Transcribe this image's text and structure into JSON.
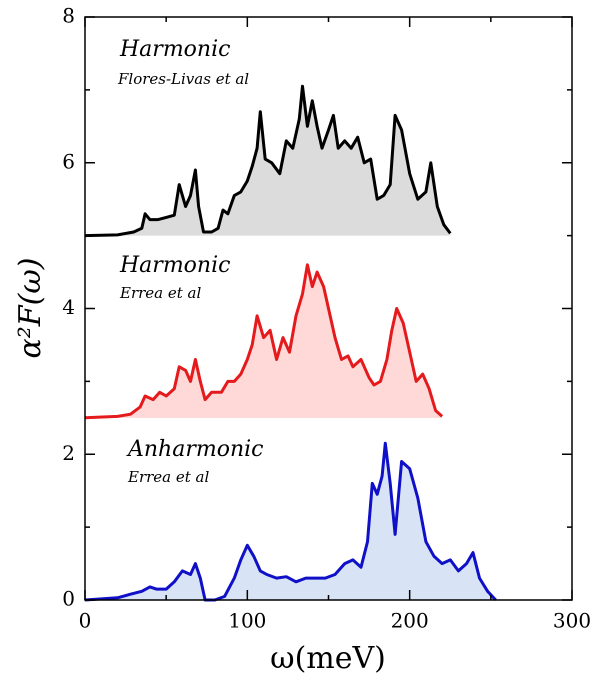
{
  "chart_data": {
    "type": "area",
    "xlabel": "ω(meV)",
    "ylabel": "α²F(ω)",
    "xlim": [
      0,
      300
    ],
    "ylim": [
      0,
      8
    ],
    "xticks": [
      0,
      100,
      200,
      300
    ],
    "yticks": [
      0,
      2,
      4,
      6,
      8
    ],
    "xminorticks": [
      50,
      150,
      250
    ],
    "yminorticks": [
      1,
      3,
      5,
      7
    ],
    "mirror_ticks": true,
    "annotations": [
      "Harmonic",
      "Flores-Livas et al",
      "Harmonic",
      "Errea et al",
      "Anharmonic",
      "Errea et al"
    ],
    "series": [
      {
        "color": "#000000",
        "fill": "#dcdcdc",
        "x": [
          0,
          20,
          30,
          35,
          37,
          40,
          45,
          50,
          55,
          58,
          62,
          65,
          68,
          70,
          73,
          78,
          82,
          85,
          88,
          92,
          96,
          100,
          103,
          106,
          108,
          111,
          115,
          120,
          124,
          128,
          132,
          134,
          137,
          140,
          143,
          146,
          150,
          153,
          156,
          160,
          164,
          168,
          172,
          176,
          180,
          184,
          188,
          191,
          195,
          200,
          205,
          210,
          213,
          217,
          221,
          225
        ],
        "values": [
          5.0,
          5.01,
          5.05,
          5.1,
          5.3,
          5.22,
          5.22,
          5.25,
          5.28,
          5.7,
          5.4,
          5.55,
          5.9,
          5.4,
          5.05,
          5.05,
          5.1,
          5.35,
          5.3,
          5.55,
          5.6,
          5.75,
          5.95,
          6.2,
          6.7,
          6.05,
          6.0,
          5.85,
          6.3,
          6.2,
          6.6,
          7.05,
          6.5,
          6.85,
          6.5,
          6.2,
          6.45,
          6.65,
          6.2,
          6.3,
          6.2,
          6.35,
          6.0,
          6.05,
          5.5,
          5.55,
          5.7,
          6.65,
          6.45,
          5.85,
          5.5,
          5.6,
          6.0,
          5.4,
          5.15,
          5.03
        ]
      },
      {
        "color": "#e41a1c",
        "fill": "#ffd8d8",
        "x": [
          0,
          20,
          28,
          34,
          37,
          42,
          46,
          50,
          55,
          58,
          62,
          65,
          68,
          71,
          74,
          78,
          84,
          88,
          92,
          96,
          100,
          103,
          106,
          110,
          114,
          118,
          122,
          126,
          130,
          134,
          137,
          140,
          143,
          147,
          150,
          154,
          158,
          162,
          165,
          170,
          175,
          178,
          182,
          186,
          189,
          192,
          196,
          200,
          204,
          208,
          212,
          216,
          220
        ],
        "values": [
          2.5,
          2.52,
          2.55,
          2.65,
          2.8,
          2.75,
          2.85,
          2.8,
          2.9,
          3.2,
          3.15,
          3.0,
          3.3,
          3.0,
          2.75,
          2.85,
          2.85,
          3.0,
          3.0,
          3.1,
          3.3,
          3.5,
          3.9,
          3.6,
          3.7,
          3.3,
          3.6,
          3.4,
          3.9,
          4.2,
          4.6,
          4.3,
          4.5,
          4.3,
          4.0,
          3.6,
          3.3,
          3.35,
          3.2,
          3.3,
          3.05,
          2.95,
          3.0,
          3.3,
          3.7,
          4.0,
          3.8,
          3.4,
          3.0,
          3.1,
          2.9,
          2.6,
          2.52
        ]
      },
      {
        "color": "#1010c8",
        "fill": "#d8e4f6",
        "x": [
          0,
          20,
          28,
          35,
          40,
          44,
          50,
          55,
          60,
          65,
          68,
          71,
          74,
          80,
          86,
          92,
          96,
          100,
          104,
          108,
          112,
          118,
          124,
          130,
          136,
          142,
          148,
          154,
          160,
          165,
          170,
          174,
          177,
          180,
          183,
          185,
          188,
          191,
          195,
          200,
          205,
          210,
          215,
          220,
          225,
          230,
          235,
          239,
          243,
          248,
          253
        ],
        "values": [
          0,
          0.03,
          0.08,
          0.12,
          0.18,
          0.15,
          0.15,
          0.25,
          0.4,
          0.35,
          0.5,
          0.3,
          0.0,
          0.0,
          0.05,
          0.3,
          0.55,
          0.75,
          0.6,
          0.4,
          0.35,
          0.3,
          0.32,
          0.25,
          0.3,
          0.3,
          0.3,
          0.35,
          0.5,
          0.55,
          0.45,
          0.8,
          1.6,
          1.45,
          1.7,
          2.15,
          1.6,
          0.9,
          1.9,
          1.8,
          1.4,
          0.8,
          0.6,
          0.5,
          0.55,
          0.4,
          0.5,
          0.65,
          0.3,
          0.12,
          0.0
        ]
      }
    ]
  }
}
